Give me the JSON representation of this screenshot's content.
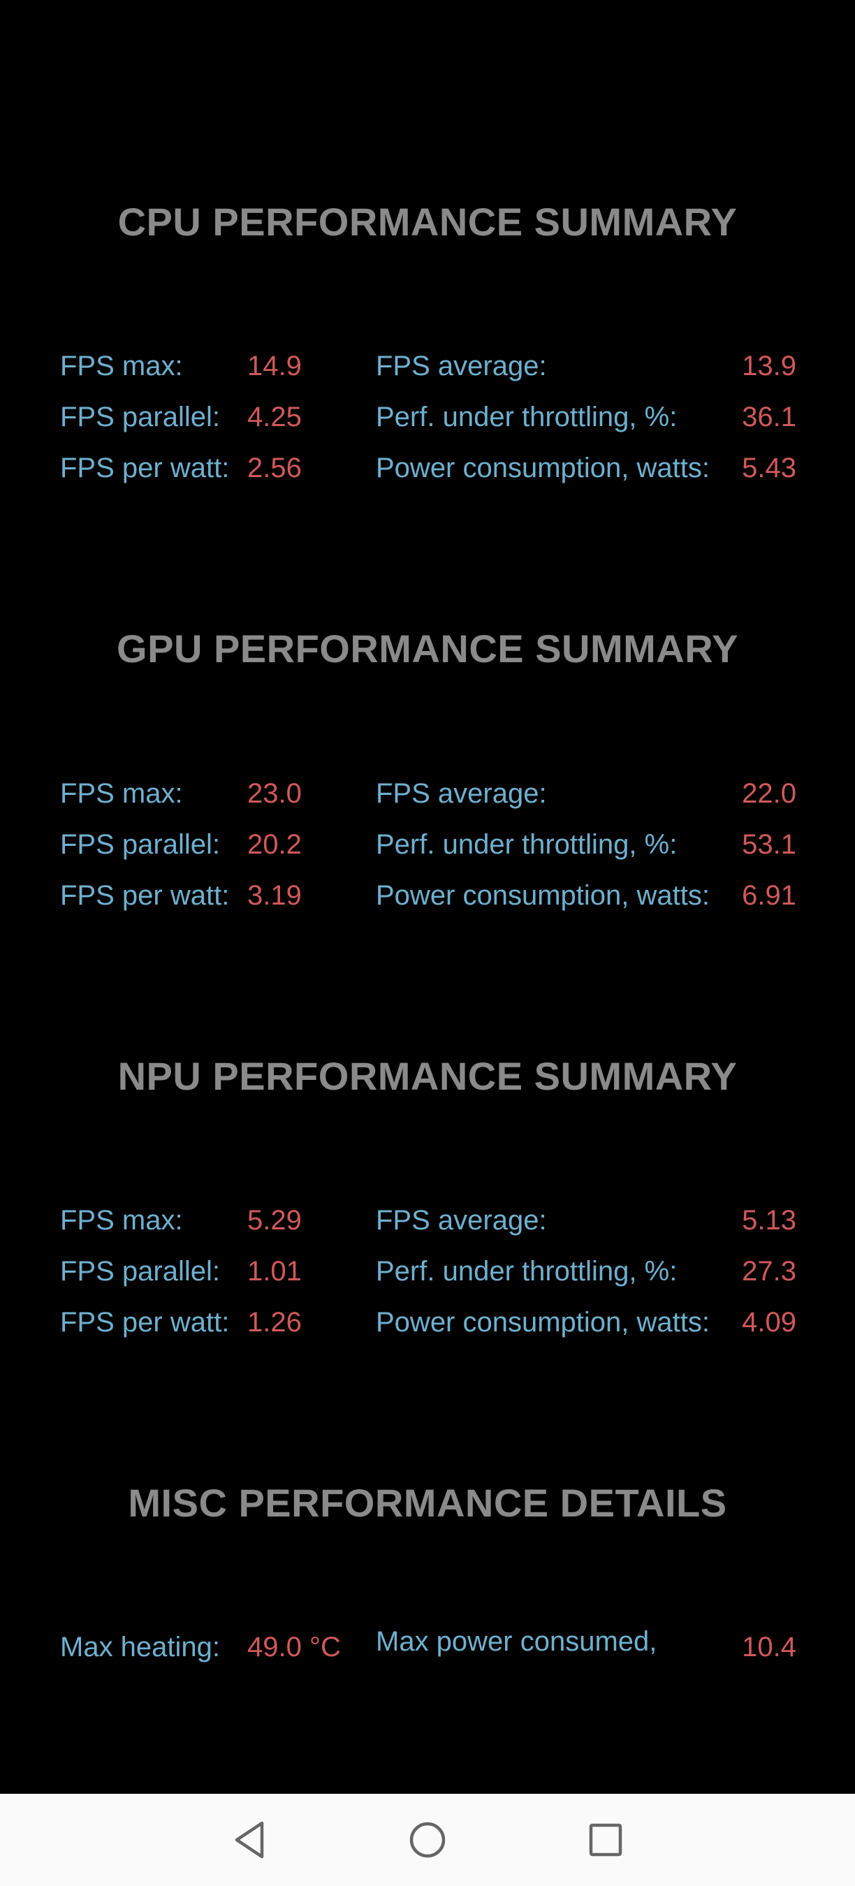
{
  "sections": [
    {
      "title": "CPU PERFORMANCE SUMMARY",
      "rows": [
        {
          "l1": "FPS max:",
          "v1": "14.9",
          "l2": "FPS average:",
          "v2": "13.9"
        },
        {
          "l1": "FPS parallel:",
          "v1": "4.25",
          "l2": "Perf. under throttling, %:",
          "v2": "36.1"
        },
        {
          "l1": "FPS per watt:",
          "v1": "2.56",
          "l2": "Power consumption, watts:",
          "v2": "5.43"
        }
      ]
    },
    {
      "title": "GPU PERFORMANCE SUMMARY",
      "rows": [
        {
          "l1": "FPS max:",
          "v1": "23.0",
          "l2": "FPS average:",
          "v2": "22.0"
        },
        {
          "l1": "FPS parallel:",
          "v1": "20.2",
          "l2": "Perf. under throttling, %:",
          "v2": "53.1"
        },
        {
          "l1": "FPS per watt:",
          "v1": "3.19",
          "l2": "Power consumption, watts:",
          "v2": "6.91"
        }
      ]
    },
    {
      "title": "NPU PERFORMANCE SUMMARY",
      "rows": [
        {
          "l1": "FPS max:",
          "v1": "5.29",
          "l2": "FPS average:",
          "v2": "5.13"
        },
        {
          "l1": "FPS parallel:",
          "v1": "1.01",
          "l2": "Perf. under throttling, %:",
          "v2": "27.3"
        },
        {
          "l1": "FPS per watt:",
          "v1": "1.26",
          "l2": "Power consumption, watts:",
          "v2": "4.09"
        }
      ]
    }
  ],
  "misc": {
    "title": "MISC PERFORMANCE DETAILS",
    "max_heating_label": "Max heating:",
    "max_heating_value": "49.0 °C",
    "max_power_label": "Max power consumed, watts:",
    "max_power_value": "10.4"
  },
  "navbar": {
    "back_icon": "back-triangle-icon",
    "home_icon": "home-circle-icon",
    "recents_icon": "recents-square-icon"
  }
}
